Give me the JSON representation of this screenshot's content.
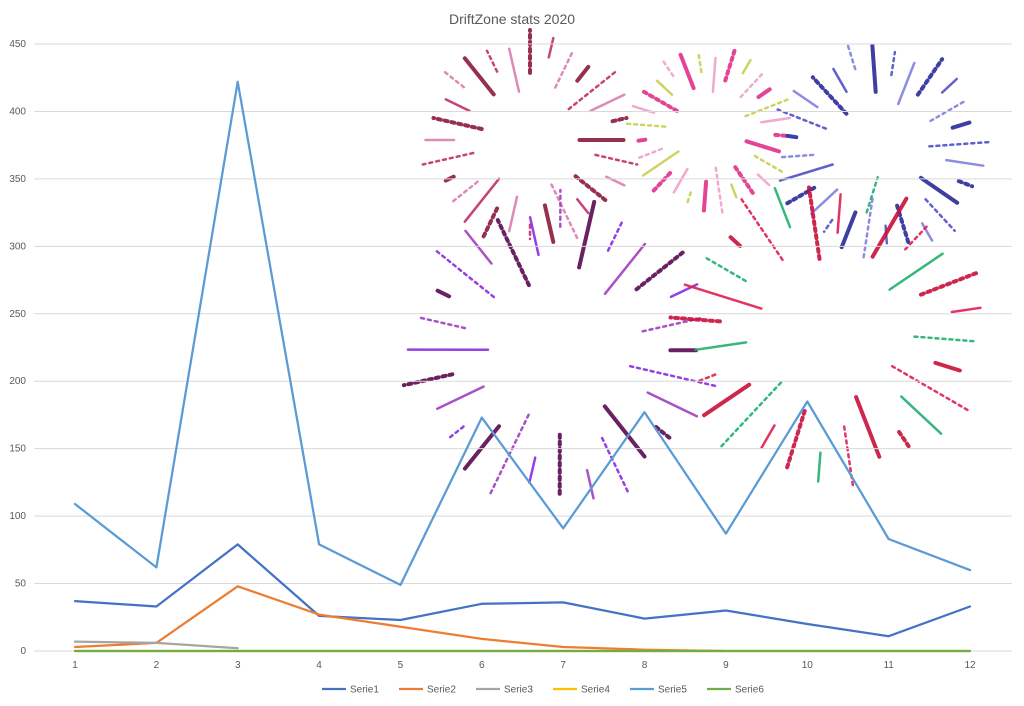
{
  "chart_data": {
    "type": "line",
    "title": "DriftZone stats 2020",
    "xlabel": "",
    "ylabel": "",
    "x": [
      1,
      2,
      3,
      4,
      5,
      6,
      7,
      8,
      9,
      10,
      11,
      12
    ],
    "ylim": [
      0,
      450
    ],
    "yticks": [
      0,
      50,
      100,
      150,
      200,
      250,
      300,
      350,
      400,
      450
    ],
    "grid": true,
    "legend_position": "bottom",
    "series": [
      {
        "name": "Serie1",
        "color": "#4472C4",
        "values": [
          37,
          33,
          79,
          26,
          23,
          35,
          36,
          24,
          30,
          20,
          11,
          33
        ]
      },
      {
        "name": "Serie2",
        "color": "#ED7D31",
        "values": [
          3,
          6,
          48,
          27,
          18,
          9,
          3,
          1,
          0,
          null,
          null,
          null
        ]
      },
      {
        "name": "Serie3",
        "color": "#A5A5A5",
        "values": [
          7,
          6,
          2,
          null,
          null,
          null,
          null,
          null,
          null,
          null,
          null,
          null
        ]
      },
      {
        "name": "Serie4",
        "color": "#FFC000",
        "values": [
          0,
          0,
          0,
          0,
          0,
          0,
          0,
          0,
          0,
          0,
          0,
          0
        ]
      },
      {
        "name": "Serie5",
        "color": "#5B9BD5",
        "values": [
          109,
          62,
          422,
          79,
          49,
          173,
          91,
          177,
          87,
          185,
          83,
          60
        ]
      },
      {
        "name": "Serie6",
        "color": "#70AD47",
        "values": [
          0,
          0,
          0,
          0,
          0,
          0,
          0,
          0,
          0,
          0,
          0,
          0
        ]
      }
    ]
  },
  "decoration": {
    "fireworks": [
      {
        "colors": [
          "#8B1A3A",
          "#C0306B",
          "#D97FB0"
        ]
      },
      {
        "colors": [
          "#E0308A",
          "#C8D050",
          "#F0A0C8"
        ]
      },
      {
        "colors": [
          "#2A2A9A",
          "#5050C8",
          "#8080E0"
        ]
      },
      {
        "colors": [
          "#5A0A50",
          "#8A2BE2",
          "#A040C0"
        ]
      },
      {
        "colors": [
          "#C8103A",
          "#E02050",
          "#20B070"
        ]
      }
    ]
  }
}
